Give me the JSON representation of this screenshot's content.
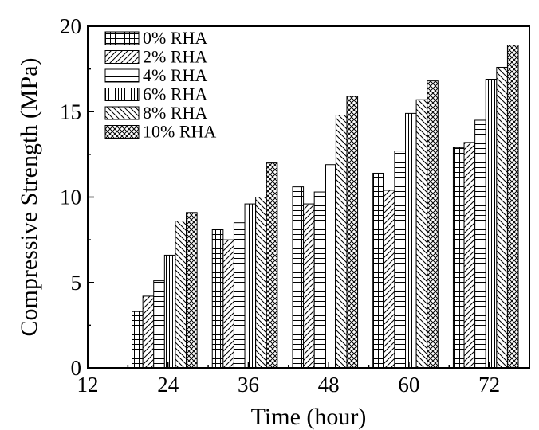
{
  "chart_data": {
    "type": "bar",
    "xlabel": "Time (hour)",
    "ylabel": "Compressive Strength (MPa)",
    "x_ticks": [
      "12",
      "24",
      "36",
      "48",
      "60",
      "72"
    ],
    "y_ticks": [
      "0",
      "5",
      "10",
      "15",
      "20"
    ],
    "xlim": [
      12,
      78
    ],
    "ylim": [
      0,
      20
    ],
    "categories": [
      "24",
      "36",
      "48",
      "60",
      "72"
    ],
    "series": [
      {
        "name": "0% RHA",
        "pattern": "grid",
        "values": [
          3.3,
          8.1,
          10.6,
          11.4,
          12.9
        ]
      },
      {
        "name": "2% RHA",
        "pattern": "diag-up",
        "values": [
          4.2,
          7.5,
          9.6,
          10.4,
          13.2
        ]
      },
      {
        "name": "4% RHA",
        "pattern": "horizontal",
        "values": [
          5.1,
          8.5,
          10.3,
          12.7,
          14.5
        ]
      },
      {
        "name": "6% RHA",
        "pattern": "vertical",
        "values": [
          6.6,
          9.6,
          11.9,
          14.9,
          16.9
        ]
      },
      {
        "name": "8% RHA",
        "pattern": "diag-down",
        "values": [
          8.6,
          10.0,
          14.8,
          15.7,
          17.6
        ]
      },
      {
        "name": "10% RHA",
        "pattern": "crosshatch",
        "values": [
          9.1,
          12.0,
          15.9,
          16.8,
          18.9
        ]
      }
    ],
    "legend_position": "top-left",
    "grid": false
  }
}
